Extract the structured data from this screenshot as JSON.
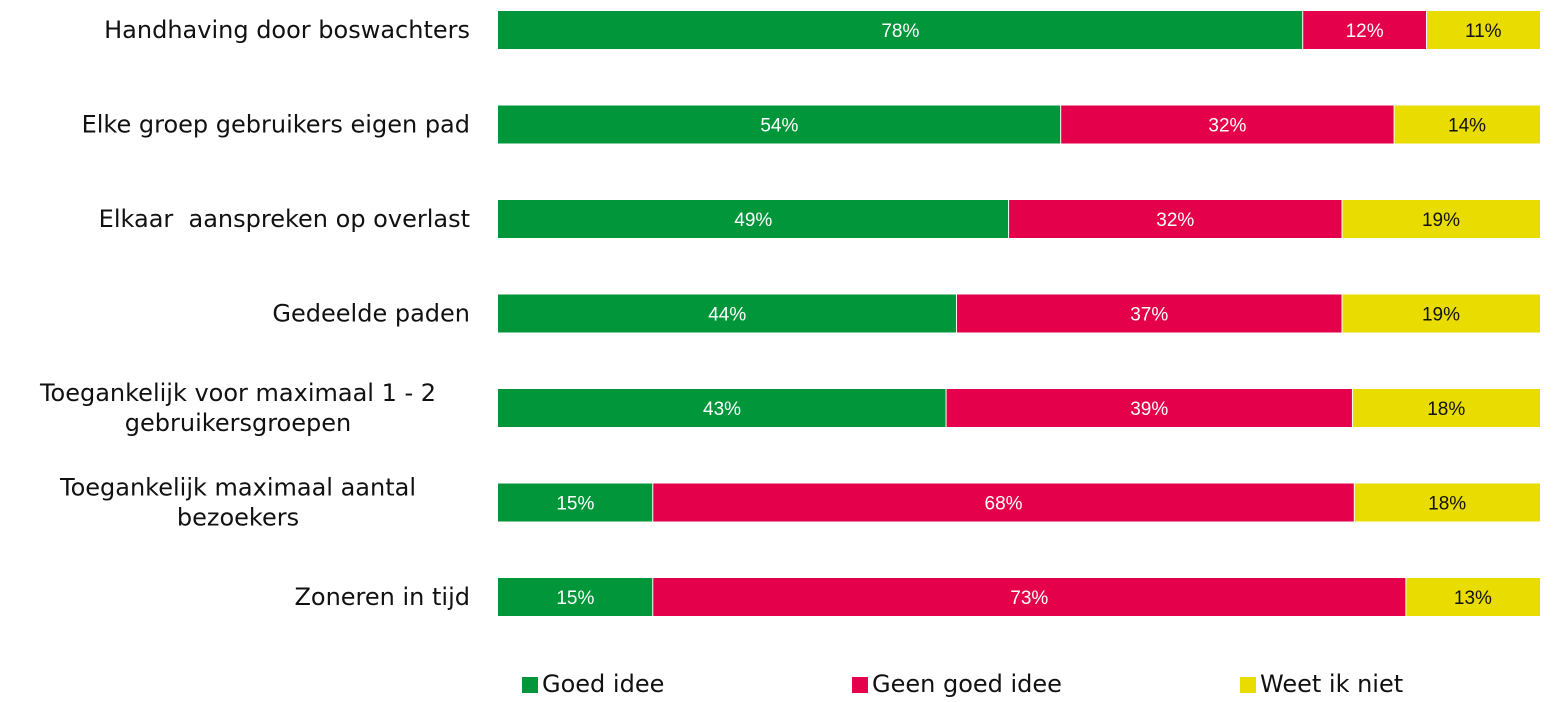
{
  "chart_data": {
    "type": "bar",
    "orientation": "horizontal",
    "stacked": true,
    "categories": [
      "Handhaving door boswachters",
      "Elke groep gebruikers eigen pad",
      "Elkaar  aanspreken op overlast",
      "Gedeelde paden",
      "Toegankelijk voor maximaal 1 - 2 gebruikersgroepen",
      "Toegankelijk maximaal aantal bezoekers",
      "Zoneren in tijd"
    ],
    "category_lines": [
      [
        "Handhaving door boswachters"
      ],
      [
        "Elke groep gebruikers eigen pad"
      ],
      [
        "Elkaar  aanspreken op overlast"
      ],
      [
        "Gedeelde paden"
      ],
      [
        "Toegankelijk voor maximaal 1 - 2",
        "gebruikersgroepen"
      ],
      [
        "Toegankelijk maximaal aantal",
        "bezoekers"
      ],
      [
        "Zoneren in tijd"
      ]
    ],
    "series": [
      {
        "name": "Goed idee",
        "color": "#009639",
        "label_color": "#ffffff",
        "values": [
          78,
          54,
          49,
          44,
          43,
          15,
          15
        ]
      },
      {
        "name": "Geen goed idee",
        "color": "#e4004b",
        "label_color": "#ffffff",
        "values": [
          12,
          32,
          32,
          37,
          39,
          68,
          73
        ]
      },
      {
        "name": "Weet ik niet",
        "color": "#e8dc00",
        "label_color": "#111111",
        "values": [
          11,
          14,
          19,
          19,
          18,
          18,
          13
        ]
      }
    ],
    "data_label_suffix": "%",
    "legend_position": "bottom",
    "grid": false,
    "xlim": [
      0,
      100
    ]
  }
}
